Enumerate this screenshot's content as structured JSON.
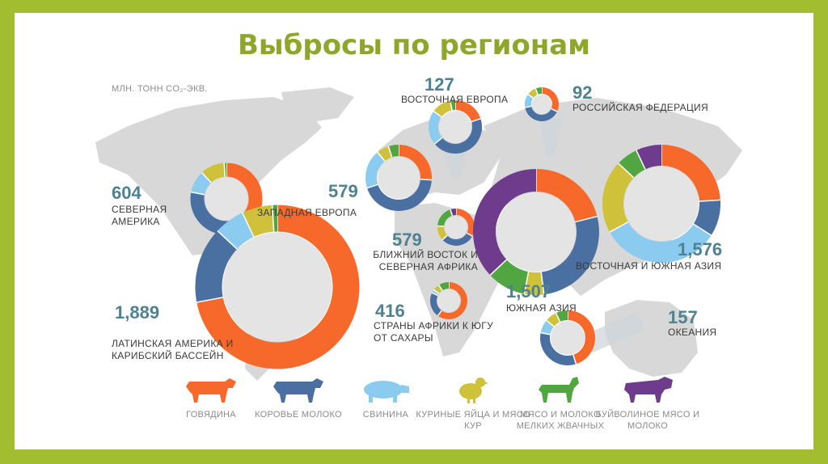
{
  "title": "Выбросы по регионам",
  "units_label": "МЛН. ТОНН CO₂-ЭКВ.",
  "legend": [
    {
      "label": "ГОВЯДИНА",
      "color": "#f7692a",
      "icon": "cow-icon"
    },
    {
      "label": "КОРОВЬЕ МОЛОКО",
      "color": "#4a6fa1",
      "icon": "dairy-cow-icon"
    },
    {
      "label": "СВИНИНА",
      "color": "#8ccbf0",
      "icon": "pig-icon"
    },
    {
      "label": "КУРИНЫЕ ЯЙЦА И МЯСО КУР",
      "color": "#cfc23a",
      "icon": "chicken-icon"
    },
    {
      "label": "МЯСО И МОЛОКО МЕЛКИХ ЖВАЧНЫХ",
      "color": "#52a642",
      "icon": "goat-icon"
    },
    {
      "label": "БУЙВОЛИНОЕ МЯСО И МОЛОКО",
      "color": "#6f3b8c",
      "icon": "buffalo-icon"
    }
  ],
  "chart_data": {
    "type": "pie",
    "variant": "donut-on-map",
    "units": "МЛН. ТОНН CO₂-ЭКВ.",
    "categories": [
      "ГОВЯДИНА",
      "КОРОВЬЕ МОЛОКО",
      "СВИНИНА",
      "КУРИНЫЕ ЯЙЦА И МЯСО КУР",
      "МЯСО И МОЛОКО МЕЛКИХ ЖВАЧНЫХ",
      "БУЙВОЛИНОЕ МЯСО И МОЛОКО"
    ],
    "colors": [
      "#f7692a",
      "#4a6fa1",
      "#8ccbf0",
      "#cfc23a",
      "#52a642",
      "#6f3b8c"
    ],
    "regions": [
      {
        "key": "na",
        "value": "604",
        "name": "СЕВЕРНАЯ АМЕРИКА",
        "shares": [
          0.48,
          0.3,
          0.1,
          0.11,
          0.01,
          0.0
        ]
      },
      {
        "key": "we",
        "value": "579",
        "name": "ЗАПАДНАЯ ЕВРОПА",
        "shares": [
          0.26,
          0.44,
          0.19,
          0.06,
          0.05,
          0.0
        ]
      },
      {
        "key": "ee",
        "value": "127",
        "name": "ВОСТОЧНАЯ ЕВРОПА",
        "shares": [
          0.2,
          0.44,
          0.21,
          0.12,
          0.03,
          0.0
        ]
      },
      {
        "key": "ru",
        "value": "92",
        "name": "РОССИЙСКАЯ ФЕДЕРАЦИЯ",
        "shares": [
          0.32,
          0.4,
          0.13,
          0.09,
          0.06,
          0.0
        ]
      },
      {
        "key": "la",
        "value": "1,889",
        "name": "ЛАТИНСКАЯ АМЕРИКА И КАРИБСКИЙ БАССЕЙН",
        "shares": [
          0.72,
          0.15,
          0.06,
          0.06,
          0.01,
          0.0
        ]
      },
      {
        "key": "me",
        "value": "579",
        "name": "БЛИЖНИЙ ВОСТОК И СЕВЕРНАЯ АФРИКА",
        "shares": [
          0.33,
          0.3,
          0.0,
          0.13,
          0.19,
          0.05
        ]
      },
      {
        "key": "ssa",
        "value": "416",
        "name": "СТРАНЫ АФРИКИ К ЮГУ ОТ САХАРЫ",
        "shares": [
          0.6,
          0.22,
          0.03,
          0.06,
          0.09,
          0.0
        ]
      },
      {
        "key": "sa",
        "value": "1,507",
        "name": "ЮЖНАЯ АЗИЯ",
        "shares": [
          0.21,
          0.27,
          0.0,
          0.05,
          0.1,
          0.37
        ]
      },
      {
        "key": "esa",
        "value": "1,576",
        "name": "ВОСТОЧНАЯ И ЮЖНАЯ АЗИЯ",
        "shares": [
          0.24,
          0.1,
          0.33,
          0.2,
          0.06,
          0.07
        ]
      },
      {
        "key": "oc",
        "value": "157",
        "name": "ОКЕАНИЯ",
        "shares": [
          0.45,
          0.33,
          0.08,
          0.07,
          0.07,
          0.0
        ]
      }
    ]
  }
}
